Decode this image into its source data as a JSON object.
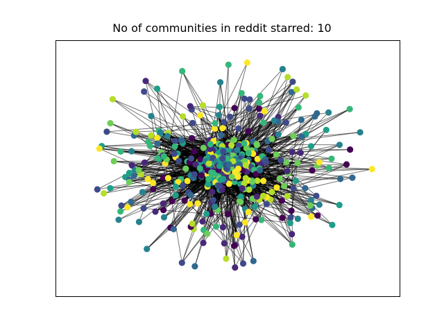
{
  "figure": {
    "title": "No of communities in reddit starred: 10"
  },
  "graph": {
    "community_count": 10,
    "palette": [
      "#440154",
      "#482878",
      "#3e4a89",
      "#31688e",
      "#26828e",
      "#1f9e89",
      "#35b779",
      "#6ece58",
      "#b5de2b",
      "#fde725"
    ],
    "edge_color": "#000000"
  }
}
